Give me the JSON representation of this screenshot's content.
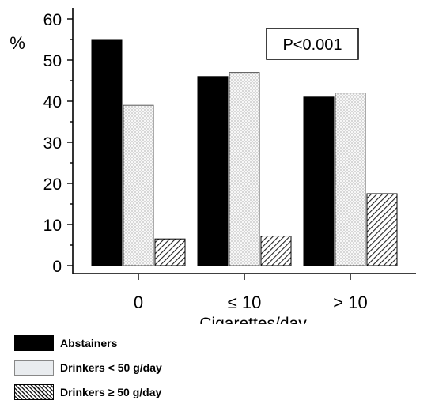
{
  "chart_data": {
    "type": "bar",
    "categories": [
      "0",
      "≤ 10",
      "> 10"
    ],
    "series": [
      {
        "name": "Abstainers",
        "values": [
          55,
          46,
          41
        ],
        "color": "#000000",
        "pattern": "solid"
      },
      {
        "name": "Drinkers < 50 g/day",
        "values": [
          39,
          47,
          42
        ],
        "color": "#f4f4f4",
        "pattern": "dots"
      },
      {
        "name": "Drinkers ≥ 50 g/day",
        "values": [
          6.5,
          7.2,
          17.5
        ],
        "color": "#ffffff",
        "pattern": "hatch"
      }
    ],
    "title": "",
    "xlabel": "Cigarettes/day",
    "ylabel": "%",
    "ylim": [
      0,
      60
    ],
    "yticks": [
      "0",
      "10",
      "20",
      "30",
      "40",
      "50",
      "60"
    ],
    "annotation": "P<0.001",
    "grid": false,
    "legend_position": "bottom-left"
  }
}
